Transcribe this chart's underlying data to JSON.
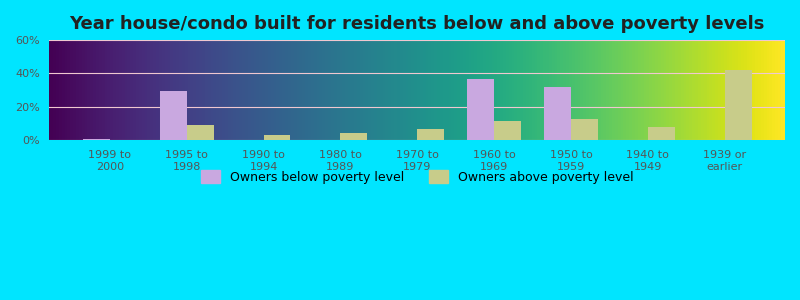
{
  "title": "Year house/condo built for residents below and above poverty levels",
  "categories": [
    "1999 to\n2000",
    "1995 to\n1998",
    "1990 to\n1994",
    "1980 to\n1989",
    "1970 to\n1979",
    "1960 to\n1969",
    "1950 to\n1959",
    "1940 to\n1949",
    "1939 or\nearlier"
  ],
  "below_poverty": [
    0.5,
    29.5,
    0,
    0,
    0,
    36.5,
    32.0,
    0,
    0
  ],
  "above_poverty": [
    0,
    9.0,
    3.0,
    4.5,
    7.0,
    11.5,
    13.0,
    8.0,
    42.0
  ],
  "below_color": "#c9a8e0",
  "above_color": "#c8cc8a",
  "ylim": [
    0,
    60
  ],
  "yticks": [
    0,
    20,
    40,
    60
  ],
  "ytick_labels": [
    "0%",
    "20%",
    "40%",
    "60%"
  ],
  "grid_color": "#f0c8d0",
  "outer_bg": "#00e5ff",
  "plot_bg_top": "#f5fff5",
  "plot_bg_bottom": "#d8efd8",
  "bar_width": 0.35,
  "title_fontsize": 13,
  "tick_fontsize": 8,
  "legend_fontsize": 9
}
